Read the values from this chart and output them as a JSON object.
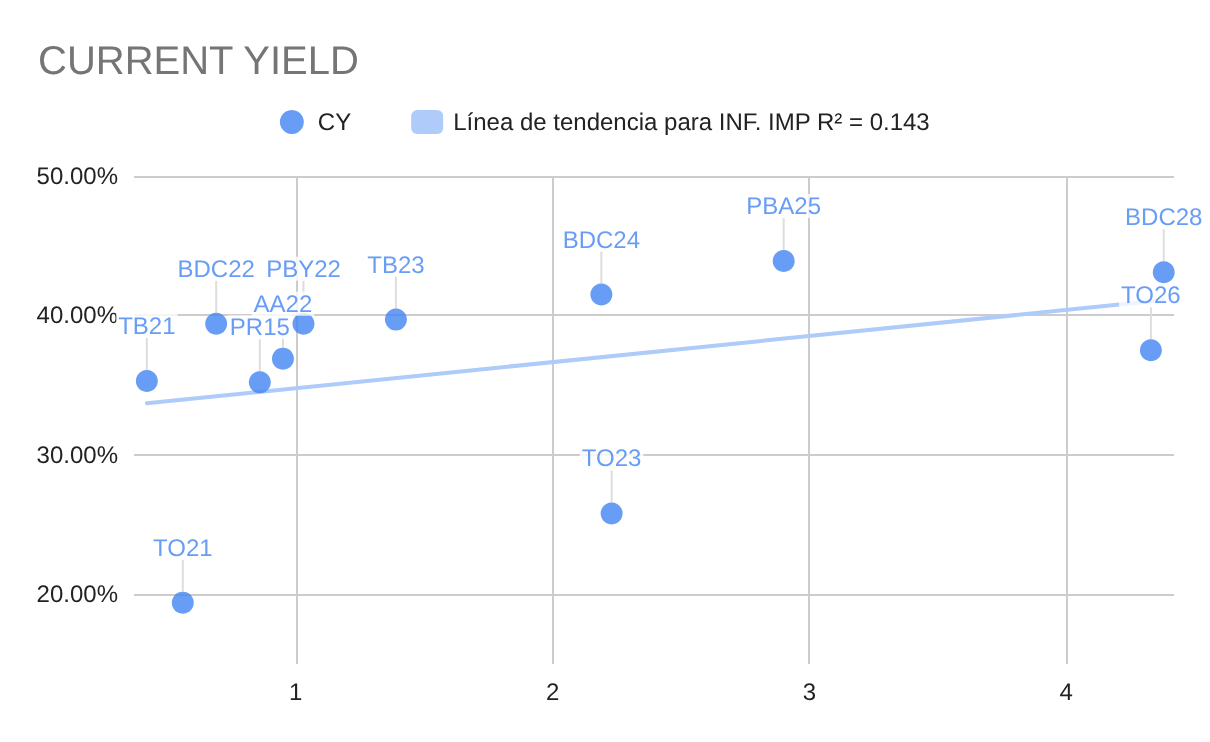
{
  "chart_data": {
    "type": "scatter",
    "title": "CURRENT YIELD",
    "x": [
      0.42,
      0.56,
      0.69,
      0.86,
      0.95,
      1.03,
      1.39,
      2.19,
      2.23,
      2.9,
      4.38,
      4.33
    ],
    "series": [
      {
        "name": "CY",
        "marker": "circle",
        "color": "#4285f4",
        "values": [
          35.3,
          19.4,
          39.4,
          35.2,
          36.9,
          39.4,
          39.7,
          41.5,
          25.8,
          43.9,
          43.1,
          37.5
        ],
        "value_labels": [
          "TB21",
          "TO21",
          "BDC22",
          "PR15",
          "AA22",
          "PBY22",
          "TB23",
          "BDC24",
          "TO23",
          "PBA25",
          "BDC28",
          "TO26"
        ]
      },
      {
        "name": "Línea de tendencia para INF. IMP R² = 0.143",
        "type": "line",
        "marker": "none",
        "color": "#aecbfa",
        "x": [
          0.42,
          4.38
        ],
        "values": [
          33.7,
          41.1
        ]
      }
    ],
    "xlim": [
      0.37,
      4.42
    ],
    "xticks": [
      1,
      2,
      3,
      4
    ],
    "ylim": [
      15,
      50
    ],
    "yticks": [
      {
        "value": 20,
        "label": "20.00%"
      },
      {
        "value": 30,
        "label": "30.00%"
      },
      {
        "value": 40,
        "label": "40.00%"
      },
      {
        "value": 50,
        "label": "50.00%"
      }
    ],
    "grid": true,
    "legend": "top"
  }
}
